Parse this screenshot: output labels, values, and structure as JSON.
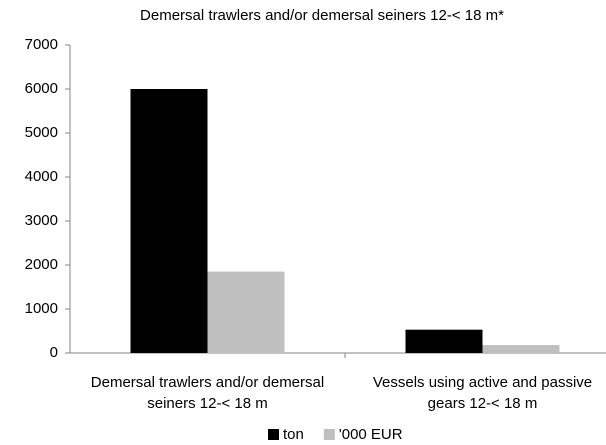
{
  "chart_data": {
    "type": "bar",
    "title": "Demersal trawlers and/or demersal seiners 12-< 18 m*",
    "categories": [
      "Demersal trawlers and/or demersal seiners 12-< 18 m",
      "Vessels using active and passive gears 12-< 18 m"
    ],
    "series": [
      {
        "name": "ton",
        "color": "#000000",
        "values": [
          6000,
          530
        ]
      },
      {
        "name": "'000 EUR",
        "color": "#bfbfbf",
        "values": [
          1850,
          180
        ]
      }
    ],
    "ylim": [
      0,
      7000
    ],
    "yticks": [
      0,
      1000,
      2000,
      3000,
      4000,
      5000,
      6000,
      7000
    ],
    "grid": false,
    "legend": "bottom"
  }
}
